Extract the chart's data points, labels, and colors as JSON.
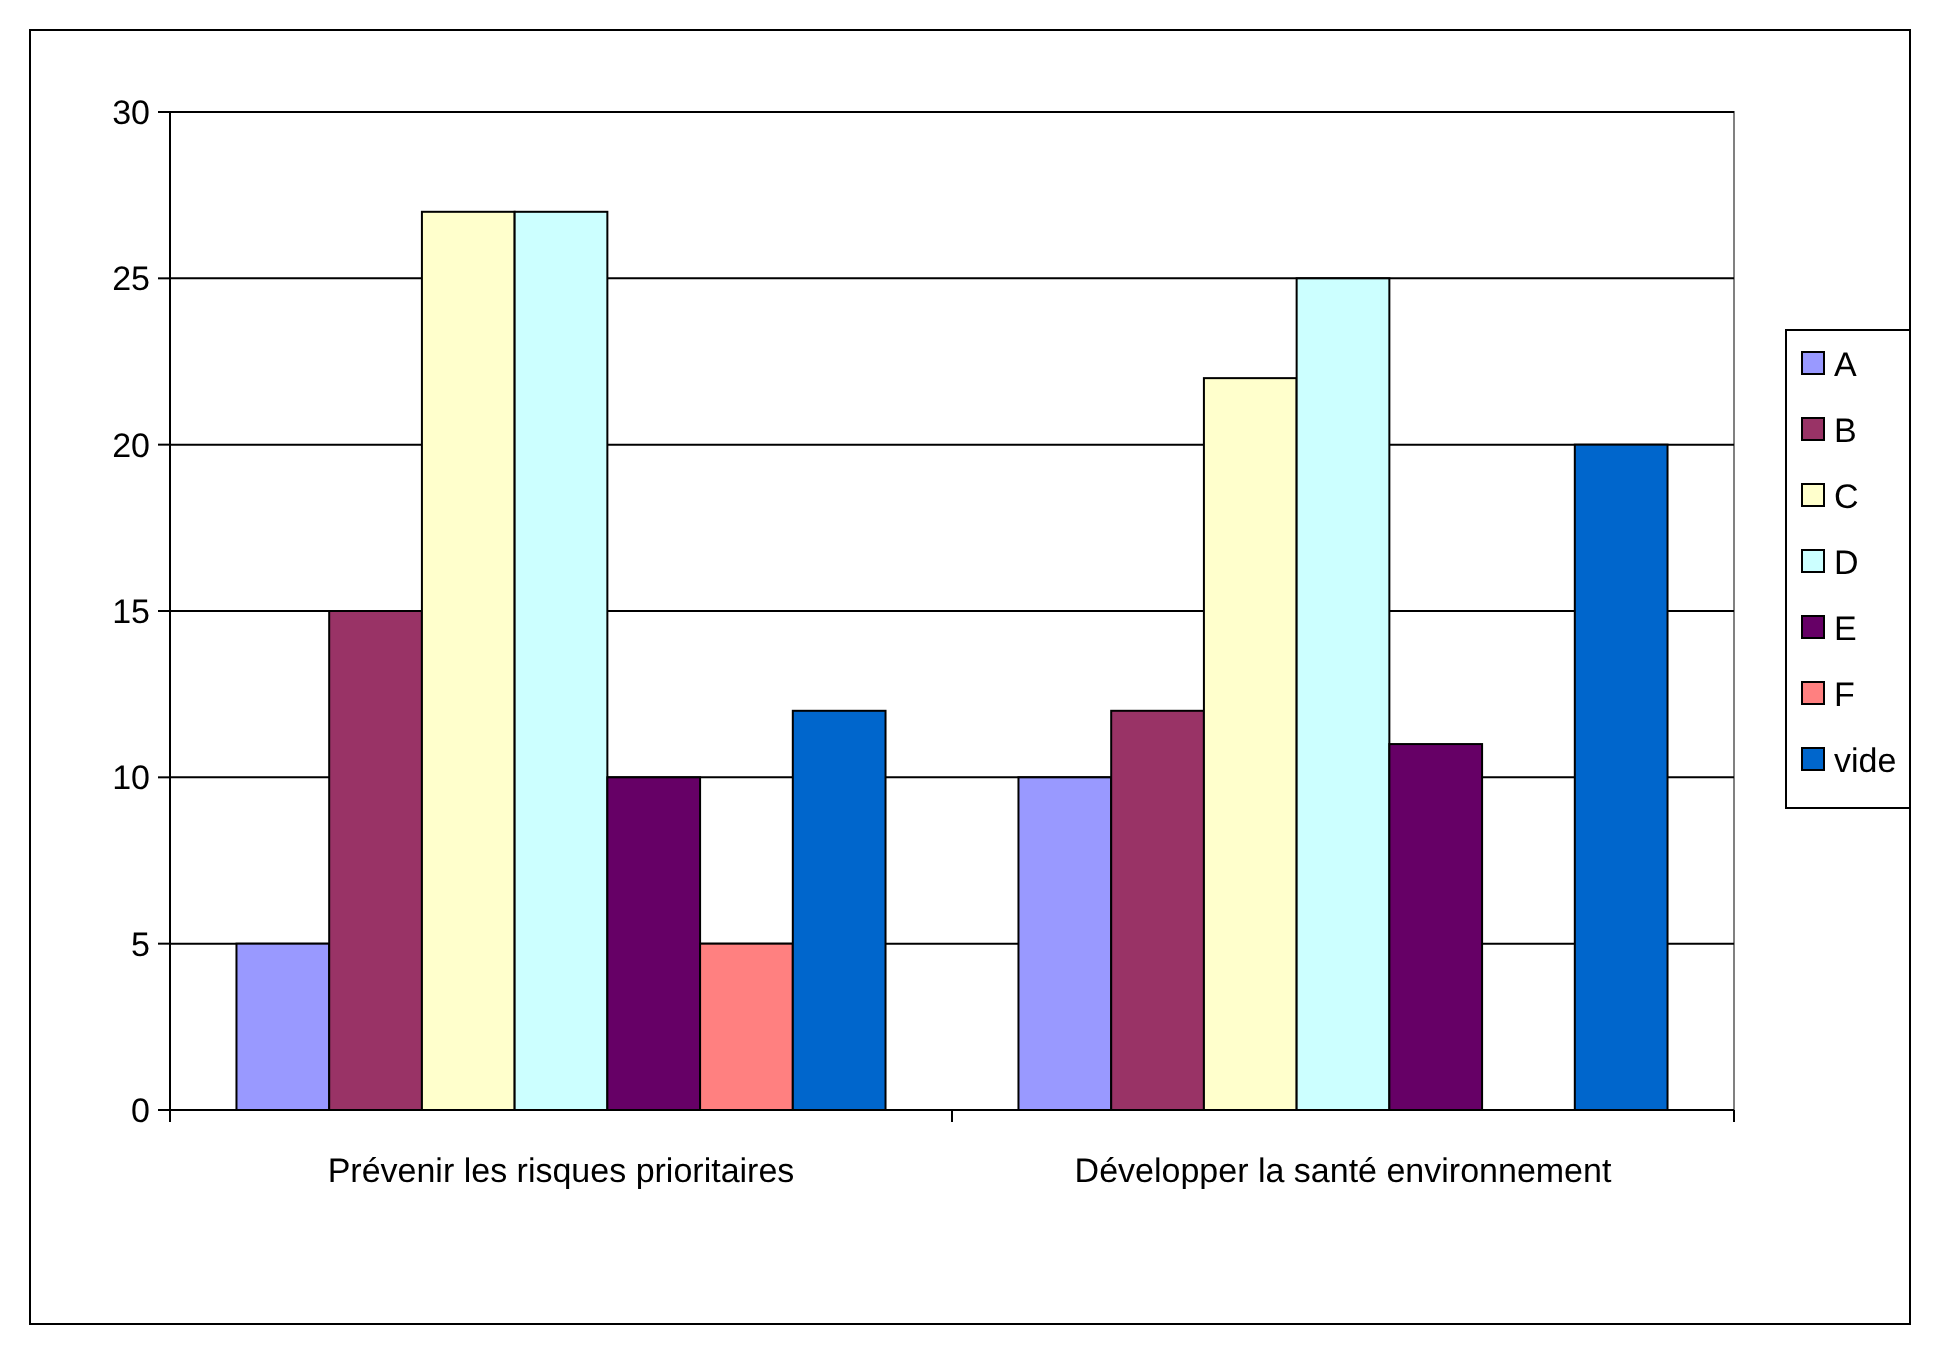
{
  "chart_data": {
    "type": "bar",
    "categories": [
      "Prévenir les risques prioritaires",
      "Développer la santé environnement"
    ],
    "series": [
      {
        "name": "A",
        "color": "#9999ff",
        "values": [
          5,
          10
        ]
      },
      {
        "name": "B",
        "color": "#993366",
        "values": [
          15,
          12
        ]
      },
      {
        "name": "C",
        "color": "#ffffcc",
        "values": [
          27,
          22
        ]
      },
      {
        "name": "D",
        "color": "#ccffff",
        "values": [
          27,
          25
        ]
      },
      {
        "name": "E",
        "color": "#660066",
        "values": [
          10,
          11
        ]
      },
      {
        "name": "F",
        "color": "#ff8080",
        "values": [
          5,
          null
        ]
      },
      {
        "name": "vide",
        "color": "#0066cc",
        "values": [
          12,
          20
        ]
      }
    ],
    "ylim": [
      0,
      30
    ],
    "yticks": [
      0,
      5,
      10,
      15,
      20,
      25,
      30
    ],
    "grid": "y",
    "legend": "right"
  }
}
